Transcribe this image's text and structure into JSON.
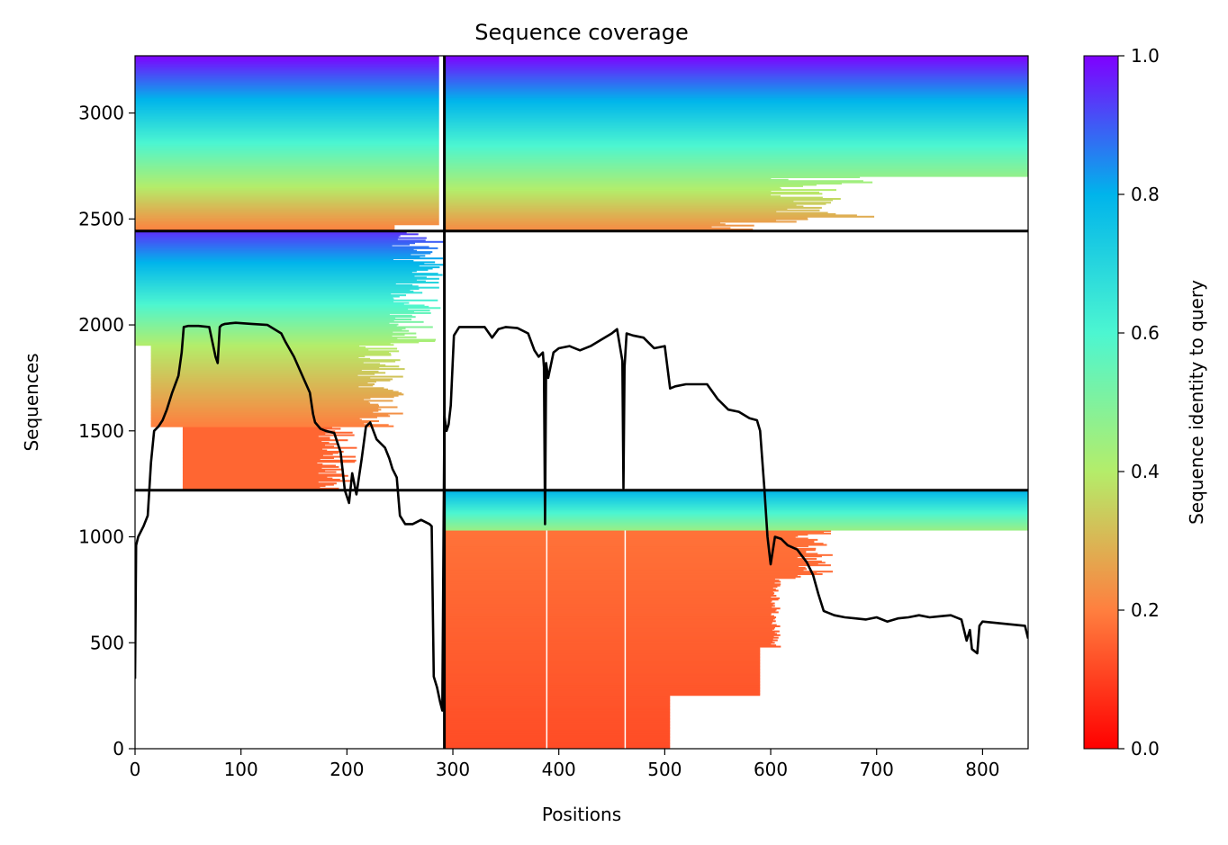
{
  "chart_data": {
    "type": "heatmap",
    "title": "Sequence coverage",
    "xlabel": "Positions",
    "ylabel": "Sequences",
    "xlim": [
      0,
      843
    ],
    "ylim": [
      0,
      3270
    ],
    "xticks": [
      0,
      100,
      200,
      300,
      400,
      500,
      600,
      700,
      800
    ],
    "yticks": [
      0,
      500,
      1000,
      1500,
      2000,
      2500,
      3000
    ],
    "colorbar": {
      "label": "Sequence identity to query",
      "range": [
        0,
        1
      ],
      "ticks": [
        "0.0",
        "0.2",
        "0.4",
        "0.6",
        "0.8",
        "1.0"
      ],
      "colormap": "rainbow_r"
    },
    "block_separators": {
      "x": 292,
      "y": [
        1220,
        2443
      ]
    },
    "heatmap_blocks": [
      {
        "name": "block 1 alignment",
        "x_range": [
          0,
          292
        ],
        "rows": [
          2443,
          3270
        ],
        "max_x_low_identity": 292
      },
      {
        "name": "block 1 pairing",
        "x_range": [
          0,
          292
        ],
        "rows": [
          1220,
          2443
        ]
      },
      {
        "name": "block 2 alignment",
        "x_range": [
          292,
          843
        ],
        "rows": [
          0,
          1220
        ]
      },
      {
        "name": "block 2 pairing",
        "x_range": [
          292,
          843
        ],
        "rows": [
          2443,
          3270
        ]
      }
    ],
    "coverage_line": {
      "x": [
        0,
        1,
        3,
        8,
        12,
        15,
        18,
        22,
        26,
        30,
        35,
        38,
        41,
        44,
        46,
        50,
        60,
        70,
        76,
        78,
        80,
        82,
        85,
        95,
        110,
        125,
        138,
        142,
        150,
        158,
        165,
        168,
        170,
        175,
        180,
        188,
        194,
        198,
        202,
        205,
        209,
        214,
        218,
        222,
        228,
        236,
        240,
        243,
        247,
        250,
        255,
        262,
        270,
        278,
        280,
        282,
        285,
        288,
        290,
        292,
        294,
        296,
        298,
        301,
        306,
        320,
        330,
        337,
        343,
        350,
        361,
        371,
        377,
        381,
        385,
        386,
        387,
        388,
        390,
        395,
        400,
        410,
        420,
        430,
        440,
        450,
        455,
        460,
        461,
        462,
        464,
        470,
        480,
        490,
        500,
        505,
        510,
        520,
        540,
        550,
        560,
        570,
        580,
        587,
        590,
        594,
        597,
        600,
        604,
        610,
        616,
        625,
        634,
        640,
        645,
        650,
        660,
        670,
        680,
        690,
        700,
        710,
        720,
        730,
        740,
        750,
        760,
        770,
        780,
        785,
        788,
        790,
        795,
        797,
        800,
        820,
        840,
        843
      ],
      "y": [
        330,
        960,
        1000,
        1050,
        1100,
        1350,
        1500,
        1520,
        1550,
        1600,
        1680,
        1720,
        1760,
        1870,
        1990,
        1995,
        1995,
        1990,
        1850,
        1820,
        1990,
        2000,
        2005,
        2010,
        2005,
        2000,
        1960,
        1920,
        1850,
        1760,
        1680,
        1580,
        1540,
        1510,
        1500,
        1490,
        1400,
        1220,
        1160,
        1300,
        1200,
        1370,
        1520,
        1540,
        1460,
        1420,
        1370,
        1320,
        1280,
        1100,
        1060,
        1060,
        1080,
        1060,
        1050,
        340,
        290,
        220,
        180,
        1570,
        1500,
        1530,
        1620,
        1950,
        1990,
        1990,
        1990,
        1940,
        1980,
        1990,
        1985,
        1960,
        1880,
        1850,
        1870,
        1800,
        1060,
        1820,
        1750,
        1870,
        1890,
        1900,
        1880,
        1900,
        1930,
        1960,
        1980,
        1830,
        1230,
        1800,
        1960,
        1950,
        1940,
        1890,
        1900,
        1700,
        1710,
        1720,
        1720,
        1650,
        1600,
        1590,
        1560,
        1550,
        1500,
        1230,
        1000,
        870,
        1000,
        990,
        960,
        940,
        880,
        820,
        730,
        650,
        630,
        620,
        615,
        610,
        620,
        600,
        615,
        620,
        630,
        620,
        625,
        630,
        610,
        510,
        560,
        470,
        450,
        580,
        600,
        590,
        580,
        520
      ]
    }
  }
}
